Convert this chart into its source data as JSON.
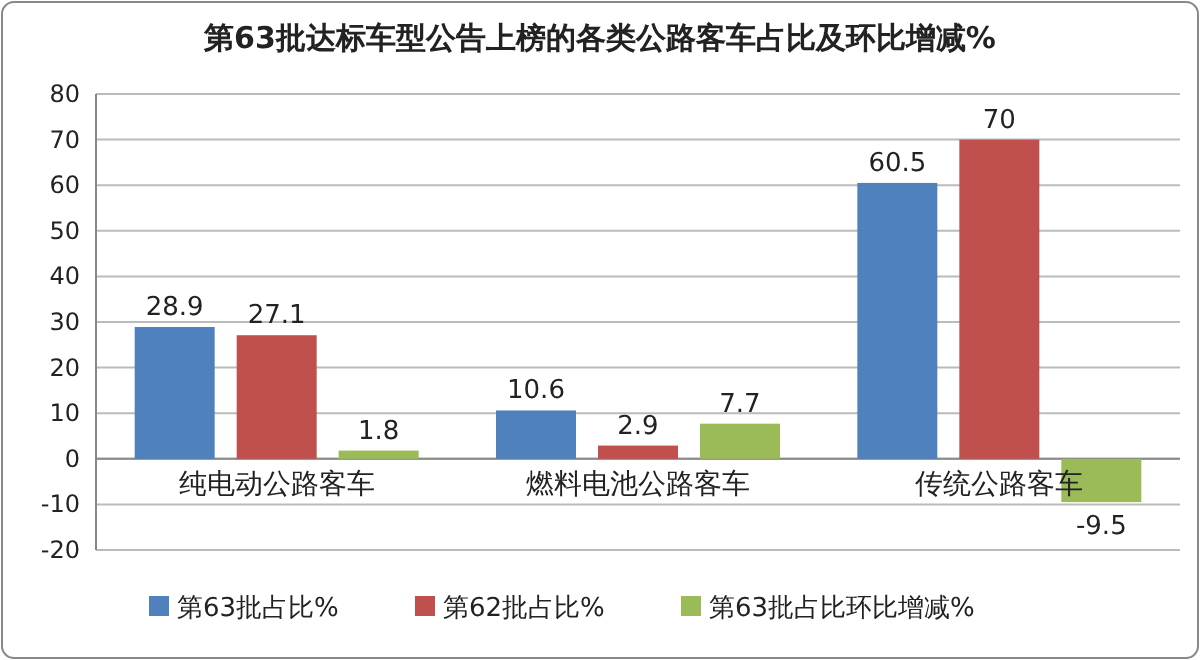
{
  "chart_data": {
    "type": "bar",
    "title": "第63批达标车型公告上榜的各类公路客车占比及环比增减%",
    "categories": [
      "纯电动公路客车",
      "燃料电池公路客车",
      "传统公路客车"
    ],
    "series": [
      {
        "name": "第63批占比%",
        "color": "#4f81bd",
        "values": [
          28.9,
          10.6,
          60.5
        ]
      },
      {
        "name": "第62批占比%",
        "color": "#c0504d",
        "values": [
          27.1,
          2.9,
          70
        ]
      },
      {
        "name": "第63批占比环比增减%",
        "color": "#9bbb59",
        "values": [
          1.8,
          7.7,
          -9.5
        ]
      }
    ],
    "ylim": [
      -20,
      80
    ],
    "yticks": [
      -20,
      -10,
      0,
      10,
      20,
      30,
      40,
      50,
      60,
      70,
      80
    ],
    "grid": "y",
    "legend": "bottom",
    "data_labels": true
  }
}
